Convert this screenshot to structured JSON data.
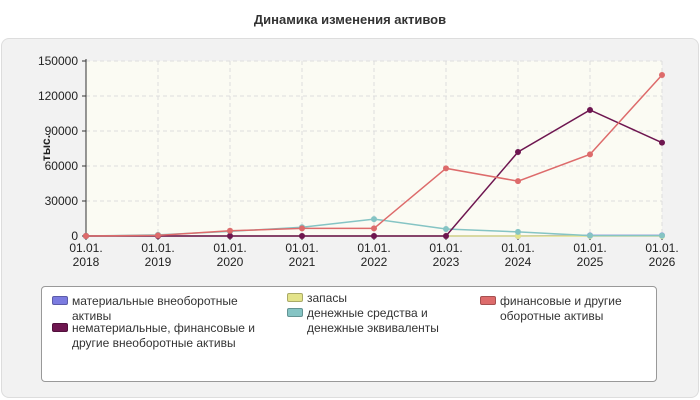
{
  "chart_data": {
    "type": "line",
    "title": "Динамика изменения активов",
    "ylabel": "тыс.",
    "xlabel": "",
    "categories": [
      "01.01.\n2018",
      "01.01.\n2019",
      "01.01.\n2020",
      "01.01.\n2021",
      "01.01.\n2022",
      "01.01.\n2023",
      "01.01.\n2024",
      "01.01.\n2025",
      "01.01.\n2026"
    ],
    "ylim": [
      0,
      150000
    ],
    "yticks": [
      "0",
      "30000",
      "60000",
      "90000",
      "120000",
      "150000"
    ],
    "grid": true,
    "legend_position": "bottom",
    "series": [
      {
        "name": "материальные внеоборотные активы",
        "color": "#7b7be0",
        "values": [
          0,
          0,
          0,
          0,
          0,
          0,
          0,
          500,
          500
        ]
      },
      {
        "name": "нематериальные, финансовые и другие внеоборотные активы",
        "color": "#6e1650",
        "values": [
          0,
          0,
          0,
          0,
          0,
          0,
          72000,
          108000,
          80000
        ]
      },
      {
        "name": "запасы",
        "color": "#e3e38a",
        "values": [
          0,
          0,
          0,
          0,
          0,
          0,
          0,
          0,
          0
        ]
      },
      {
        "name": "денежные средства и денежные эквиваленты",
        "color": "#85c4c4",
        "values": [
          0,
          1000,
          4000,
          7500,
          14500,
          6000,
          3500,
          300,
          300
        ]
      },
      {
        "name": "финансовые и другие оборотные активы",
        "color": "#dd6b6b",
        "values": [
          0,
          500,
          4500,
          6500,
          6500,
          58000,
          47000,
          70000,
          138000
        ]
      }
    ]
  }
}
